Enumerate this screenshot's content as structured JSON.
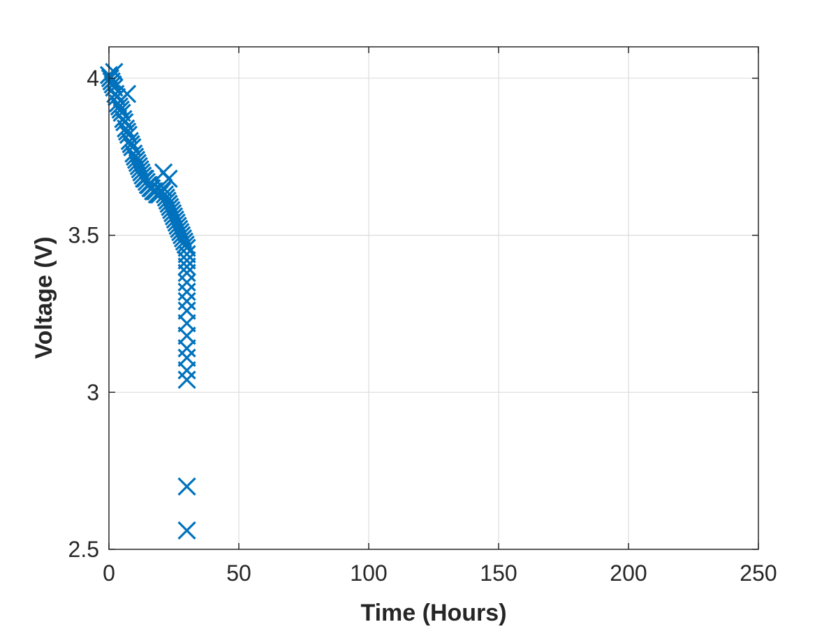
{
  "chart_data": {
    "type": "scatter",
    "title": "",
    "xlabel": "Time (Hours)",
    "ylabel": "Voltage (V)",
    "xlim": [
      0,
      250
    ],
    "ylim": [
      2.5,
      4.1
    ],
    "x_ticks": [
      0,
      50,
      100,
      150,
      200,
      250
    ],
    "y_ticks": [
      2.5,
      3,
      3.5,
      4
    ],
    "x_tick_labels": [
      "0",
      "50",
      "100",
      "150",
      "200",
      "250"
    ],
    "y_tick_labels": [
      "2.5",
      "3",
      "3.5",
      "4"
    ],
    "grid": true,
    "marker": "x",
    "series_color": "#0072BD",
    "series": [
      {
        "x": [
          0,
          0.5,
          1,
          1.5,
          2,
          2.5,
          3,
          3.5,
          4,
          4.5,
          5,
          5.5,
          6,
          6.5,
          7,
          7.5,
          8,
          8.5,
          9,
          9.5,
          10,
          10.5,
          11,
          11.5,
          12,
          12.5,
          13,
          13.5,
          14,
          14.5,
          15,
          15.5,
          16,
          16.5,
          17,
          17.5,
          18,
          18.5,
          19,
          19.5,
          20,
          20.5,
          21,
          21.5,
          22,
          22.5,
          23,
          23.5,
          24,
          24.5,
          25,
          25.5,
          26,
          26.5,
          27,
          27.5,
          28,
          28.5,
          29,
          29.5,
          30,
          30,
          30,
          30,
          30,
          30,
          30,
          30,
          30,
          30,
          30,
          30,
          30,
          30,
          30,
          2,
          7,
          21,
          23,
          30,
          30
        ],
        "y": [
          4.01,
          4.0,
          3.99,
          3.98,
          3.97,
          3.95,
          3.94,
          3.92,
          3.91,
          3.9,
          3.89,
          3.87,
          3.86,
          3.84,
          3.83,
          3.82,
          3.8,
          3.79,
          3.78,
          3.76,
          3.75,
          3.74,
          3.73,
          3.72,
          3.71,
          3.7,
          3.69,
          3.68,
          3.68,
          3.67,
          3.66,
          3.66,
          3.65,
          3.65,
          3.64,
          3.64,
          3.64,
          3.63,
          3.63,
          3.63,
          3.64,
          3.64,
          3.65,
          3.63,
          3.62,
          3.61,
          3.6,
          3.59,
          3.58,
          3.57,
          3.56,
          3.55,
          3.54,
          3.53,
          3.52,
          3.51,
          3.5,
          3.49,
          3.48,
          3.47,
          3.46,
          3.44,
          3.42,
          3.4,
          3.38,
          3.35,
          3.32,
          3.29,
          3.26,
          3.22,
          3.18,
          3.14,
          3.11,
          3.07,
          3.04,
          4.02,
          3.95,
          3.7,
          3.68,
          2.7,
          2.56
        ]
      }
    ]
  }
}
